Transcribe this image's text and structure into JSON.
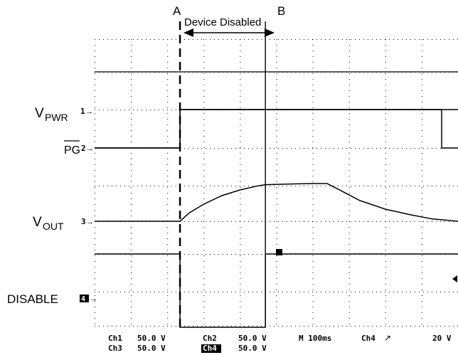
{
  "chart_data": {
    "type": "line",
    "title": "",
    "xlabel": "",
    "ylabel": "",
    "annotations": {
      "marker_a": "A",
      "marker_b": "B",
      "span_label": "Device Disabled"
    },
    "channel_labels": [
      {
        "id": "ch1",
        "text_main": "V",
        "text_sub": "PWR",
        "marker": "1"
      },
      {
        "id": "ch2",
        "text_main": "PG",
        "text_sub": "",
        "marker": "2",
        "overline": true
      },
      {
        "id": "ch3",
        "text_main": "V",
        "text_sub": "OUT",
        "marker": "3"
      },
      {
        "id": "ch4",
        "text_main": "DISABLE",
        "text_sub": "",
        "marker": "4"
      }
    ],
    "scope_readout": {
      "ch1": "Ch1",
      "ch1_scale": "50.0 V",
      "ch2": "Ch2",
      "ch2_scale": "50.0 V",
      "ch3": "Ch3",
      "ch3_scale": "50.0 V",
      "ch4": "Ch4",
      "ch4_scale": "50.0 V",
      "timebase": "M 100ms",
      "trigger": "Ch4",
      "trigger_level": "20 V"
    },
    "x_divisions": 10,
    "time_per_div_ms": 100,
    "cursor_a_div": 2.35,
    "cursor_b_div": 4.7,
    "series": [
      {
        "name": "V_PWR",
        "x": [
          0,
          2.35,
          2.35,
          9.55,
          9.55,
          10
        ],
        "y": [
          0,
          0,
          1,
          1,
          0,
          0
        ]
      },
      {
        "name": "PG",
        "x": [
          0,
          2.35,
          2.35,
          10
        ],
        "y": [
          0,
          0,
          1,
          1
        ]
      },
      {
        "name": "V_OUT",
        "x": [
          0,
          2.35,
          2.6,
          3.0,
          3.5,
          4.0,
          4.5,
          4.7,
          5.5,
          6.0,
          6.4,
          6.8,
          7.3,
          8.0,
          8.7,
          9.3,
          10
        ],
        "y": [
          0,
          0,
          0.22,
          0.45,
          0.68,
          0.83,
          0.94,
          0.97,
          0.99,
          1.0,
          1.0,
          0.8,
          0.55,
          0.32,
          0.17,
          0.06,
          0.0
        ]
      },
      {
        "name": "DISABLE",
        "x": [
          0,
          2.35,
          2.35,
          4.7,
          4.7,
          10
        ],
        "y": [
          1,
          1,
          0,
          0,
          1,
          1
        ]
      }
    ]
  }
}
